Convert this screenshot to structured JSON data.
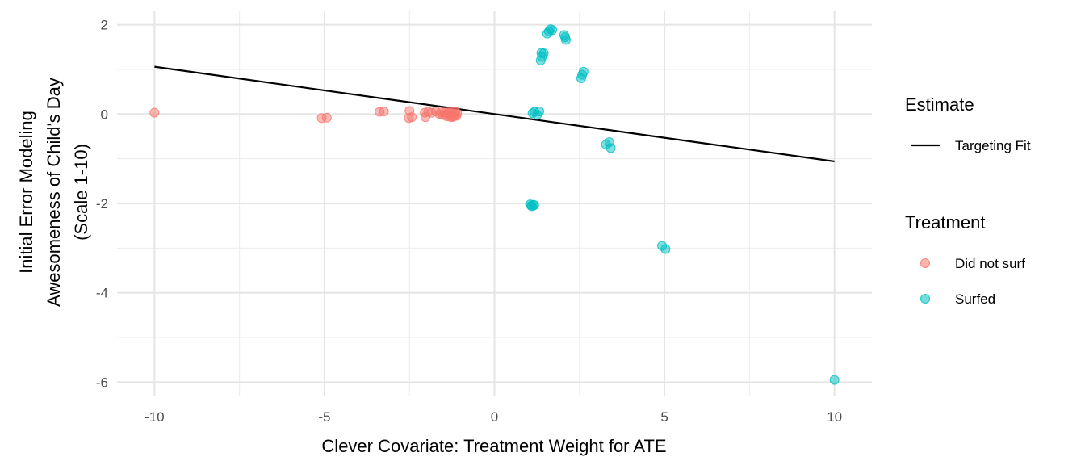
{
  "chart_data": {
    "type": "scatter",
    "xlabel": "Clever Covariate: Treatment Weight for ATE",
    "ylabel_lines": [
      "Initial Error Modeling",
      "Awesomeness of Child's Day",
      "(Scale 1-10)"
    ],
    "xlim": [
      -11.1,
      11.1
    ],
    "ylim": [
      -6.3,
      2.3
    ],
    "x_ticks": [
      -10,
      -5,
      0,
      5,
      10
    ],
    "x_tick_labels": [
      "-10",
      "-5",
      "0",
      "5",
      "10"
    ],
    "y_ticks": [
      2,
      0,
      -2,
      -4,
      -6
    ],
    "y_tick_labels": [
      "2",
      "0",
      "-2",
      "-4",
      "-6"
    ],
    "x_minor": [
      -7.5,
      -2.5,
      2.5,
      7.5
    ],
    "y_minor": [
      1,
      -1,
      -3,
      -5
    ],
    "grid": true,
    "legend_placement": "right",
    "legends": [
      {
        "title": "Estimate",
        "entries": [
          {
            "label": "Targeting Fit",
            "kind": "line",
            "color": "#000000"
          }
        ]
      },
      {
        "title": "Treatment",
        "entries": [
          {
            "label": "Did not surf",
            "kind": "point",
            "color": "#F8766D"
          },
          {
            "label": "Surfed",
            "kind": "point",
            "color": "#00BFC4"
          }
        ]
      }
    ],
    "lines": [
      {
        "name": "Targeting Fit",
        "color": "#000000",
        "x": [
          -10,
          10
        ],
        "y": [
          1.06,
          -1.06
        ]
      }
    ],
    "series": [
      {
        "name": "Did not surf",
        "color": "#F8766D",
        "x": [
          -10.0,
          -5.08,
          -4.93,
          -3.38,
          -3.25,
          -2.5,
          -2.52,
          -2.43,
          -2.05,
          -2.03,
          -1.95,
          -1.85,
          -1.72,
          -1.62,
          -1.57,
          -1.52,
          -1.45,
          -1.4,
          -1.36,
          -1.3,
          -1.25,
          -1.22,
          -1.18,
          -1.15,
          -1.12,
          -1.1,
          -1.28,
          -1.35,
          -1.45,
          -1.2
        ],
        "y": [
          0.03,
          -0.09,
          -0.08,
          0.05,
          0.06,
          0.07,
          -0.09,
          -0.07,
          0.03,
          -0.07,
          0.05,
          0.03,
          0.06,
          0.0,
          0.04,
          -0.02,
          0.03,
          -0.05,
          0.02,
          -0.03,
          0.05,
          -0.06,
          0.0,
          0.06,
          -0.04,
          0.02,
          -0.07,
          0.04,
          -0.02,
          -0.05
        ]
      },
      {
        "name": "Surfed",
        "color": "#00BFC4",
        "x": [
          1.12,
          1.18,
          1.25,
          1.32,
          1.15,
          1.08,
          1.05,
          1.1,
          1.17,
          1.38,
          1.45,
          1.4,
          1.36,
          1.55,
          1.6,
          1.65,
          1.7,
          2.05,
          2.08,
          2.1,
          2.55,
          2.58,
          2.62,
          3.28,
          3.38,
          3.42,
          4.93,
          5.03,
          10.0
        ],
        "y": [
          0.02,
          0.05,
          -0.02,
          0.06,
          -2.03,
          -2.05,
          -2.02,
          -2.06,
          -2.04,
          1.37,
          1.36,
          1.28,
          1.2,
          1.8,
          1.85,
          1.9,
          1.88,
          1.77,
          1.72,
          1.66,
          0.8,
          0.88,
          0.95,
          -0.68,
          -0.63,
          -0.76,
          -2.95,
          -3.02,
          -5.95
        ]
      }
    ]
  }
}
